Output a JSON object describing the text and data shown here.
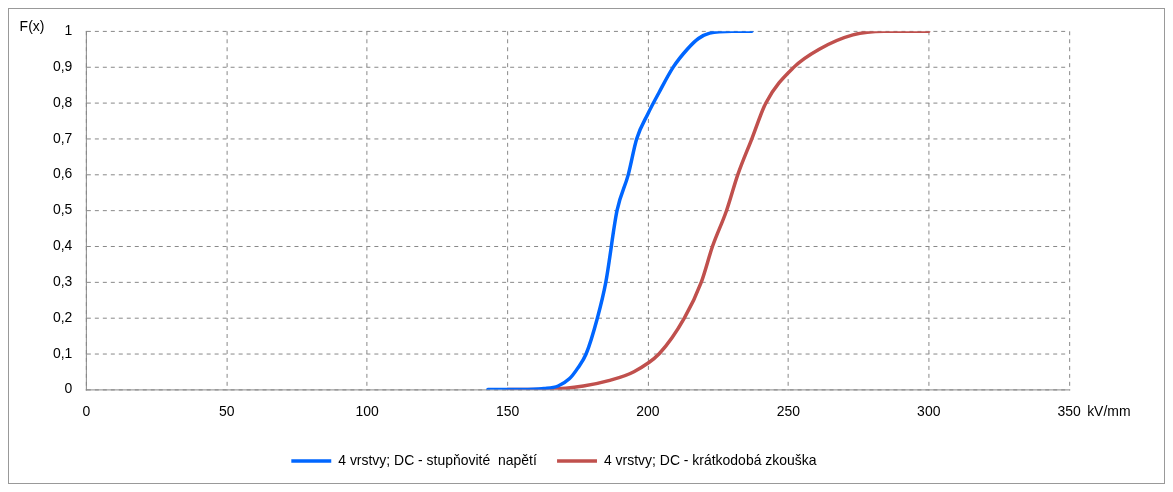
{
  "chart_data": {
    "type": "line",
    "ylabel": "F(x)",
    "xlabel": "kV/mm",
    "xlim": [
      0,
      350
    ],
    "xticks": [
      0,
      50,
      100,
      150,
      200,
      250,
      300,
      350
    ],
    "ylim": [
      0,
      1
    ],
    "yticks": [
      0,
      {
        "value": 0.1,
        "label": "0,1"
      },
      {
        "value": 0.2,
        "label": "0,2"
      },
      {
        "value": 0.3,
        "label": "0,3"
      },
      {
        "value": 0.4,
        "label": "0,4"
      },
      {
        "value": 0.5,
        "label": "0,5"
      },
      {
        "value": 0.6,
        "label": "0,6"
      },
      {
        "value": 0.7,
        "label": "0,7"
      },
      {
        "value": 0.8,
        "label": "0,8"
      },
      {
        "value": 0.9,
        "label": "0,9"
      },
      1
    ],
    "grid": true,
    "legend": "bottom",
    "marker": "none",
    "line_style": "solid",
    "series": [
      {
        "name": "4 vrstvy; DC - stupňovité  napětí",
        "color": "#0066ff",
        "x": [
          143,
          155,
          163,
          168,
          172,
          175,
          178,
          182,
          185,
          189,
          193,
          196,
          200,
          204,
          209,
          214,
          218,
          222,
          230,
          237
        ],
        "values": [
          0,
          0,
          0.003,
          0.01,
          0.03,
          0.06,
          0.1,
          0.2,
          0.3,
          0.5,
          0.6,
          0.7,
          0.77,
          0.83,
          0.9,
          0.95,
          0.98,
          0.995,
          1,
          1
        ]
      },
      {
        "name": "4 vrstvy; DC - krátkodobá zkouška",
        "color": "#c0504d",
        "x": [
          150,
          165,
          177,
          186,
          195,
          204,
          213,
          219,
          223,
          228,
          232,
          237,
          242,
          252,
          261,
          273,
          284,
          300
        ],
        "values": [
          0,
          0.001,
          0.01,
          0.025,
          0.05,
          0.1,
          0.2,
          0.3,
          0.4,
          0.5,
          0.6,
          0.7,
          0.8,
          0.9,
          0.95,
          0.99,
          1,
          1
        ]
      }
    ]
  }
}
